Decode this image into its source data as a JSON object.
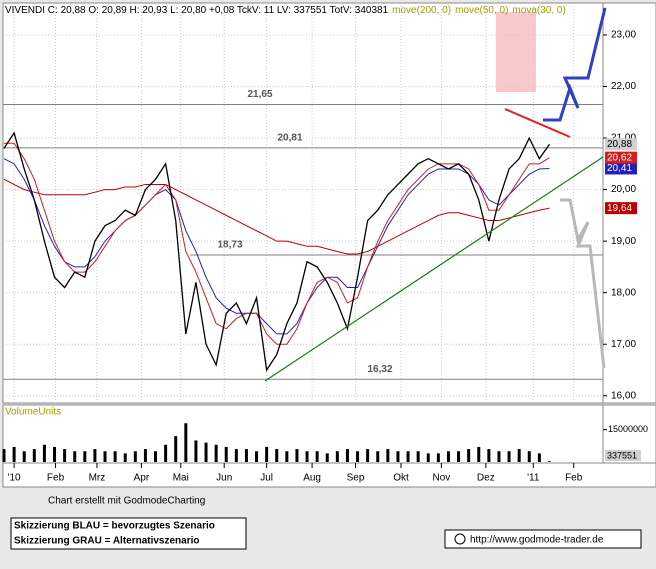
{
  "chart_data": {
    "type": "line",
    "title": "VIVENDI C: 20,88 O: 20,89 H: 20,93 L: 20,80 +0,08 TckV: 11 LV: 337551 TotV: 340381",
    "x": [
      -1,
      0,
      1,
      2,
      3,
      4,
      5,
      6,
      7,
      8,
      9,
      10,
      11,
      12,
      13,
      14,
      15,
      16,
      17,
      18,
      19,
      20,
      21,
      22,
      23,
      24,
      25,
      26,
      27,
      28,
      29,
      30,
      31,
      32,
      33,
      34,
      35,
      36,
      37,
      38,
      39,
      40,
      41,
      42,
      43,
      44,
      45,
      46,
      47,
      48,
      49,
      50,
      51,
      52,
      53
    ],
    "series": [
      {
        "name": "VIVENDI",
        "color": "#000000",
        "values": [
          20.8,
          21.1,
          20.4,
          19.8,
          19.0,
          18.3,
          18.1,
          18.4,
          18.3,
          19.0,
          19.3,
          19.4,
          19.6,
          19.5,
          20.0,
          20.2,
          20.5,
          19.4,
          17.2,
          18.2,
          17.0,
          16.6,
          17.6,
          17.8,
          17.4,
          17.9,
          16.5,
          16.8,
          17.4,
          17.8,
          18.6,
          18.5,
          18.2,
          17.8,
          17.3,
          18.3,
          19.4,
          19.6,
          19.9,
          20.1,
          20.3,
          20.5,
          20.6,
          20.5,
          20.4,
          20.5,
          20.3,
          19.8,
          19.0,
          19.8,
          20.4,
          20.6,
          21.0,
          20.6,
          20.88
        ],
        "value_labels": [
          null,
          null,
          null,
          null,
          null,
          null,
          null,
          null,
          null,
          null,
          null,
          null,
          null,
          null,
          null,
          null,
          null,
          null,
          null,
          null,
          null,
          null,
          null,
          null,
          null,
          null,
          null,
          null,
          null,
          null,
          null,
          null,
          null,
          null,
          null,
          null,
          null,
          null,
          null,
          null,
          null,
          null,
          null,
          null,
          null,
          null,
          null,
          null,
          null,
          null,
          null,
          null,
          null,
          null,
          "20,88"
        ]
      },
      {
        "name": "move(200, 0)",
        "color": "#c00000",
        "values": [
          20.2,
          20.1,
          20.0,
          19.95,
          19.9,
          19.9,
          19.9,
          19.9,
          19.9,
          19.95,
          20.0,
          20.0,
          20.05,
          20.05,
          20.1,
          20.1,
          20.1,
          20.0,
          19.9,
          19.8,
          19.7,
          19.6,
          19.5,
          19.4,
          19.3,
          19.2,
          19.1,
          19.0,
          19.0,
          18.95,
          18.9,
          18.9,
          18.85,
          18.8,
          18.75,
          18.75,
          18.8,
          18.9,
          19.0,
          19.1,
          19.2,
          19.3,
          19.4,
          19.5,
          19.55,
          19.55,
          19.5,
          19.45,
          19.4,
          19.4,
          19.45,
          19.5,
          19.55,
          19.6,
          19.64
        ],
        "value_labels": [
          null,
          null,
          null,
          null,
          null,
          null,
          null,
          null,
          null,
          null,
          null,
          null,
          null,
          null,
          null,
          null,
          null,
          null,
          null,
          null,
          null,
          null,
          null,
          null,
          null,
          null,
          null,
          null,
          null,
          null,
          null,
          null,
          null,
          null,
          null,
          null,
          null,
          null,
          null,
          null,
          null,
          null,
          null,
          null,
          null,
          null,
          null,
          null,
          null,
          null,
          null,
          null,
          null,
          null,
          "19,64"
        ]
      },
      {
        "name": "move(50, 0)",
        "color": "#2020c0",
        "values": [
          20.6,
          20.5,
          20.2,
          19.8,
          19.3,
          18.9,
          18.6,
          18.5,
          18.5,
          18.7,
          19.0,
          19.2,
          19.4,
          19.5,
          19.7,
          19.9,
          20.0,
          19.8,
          19.2,
          18.8,
          18.3,
          17.9,
          17.7,
          17.6,
          17.6,
          17.6,
          17.4,
          17.2,
          17.2,
          17.4,
          17.8,
          18.1,
          18.3,
          18.3,
          18.1,
          18.1,
          18.5,
          18.9,
          19.3,
          19.6,
          19.9,
          20.1,
          20.3,
          20.4,
          20.4,
          20.4,
          20.3,
          20.1,
          19.8,
          19.7,
          19.9,
          20.1,
          20.3,
          20.4,
          20.41
        ],
        "value_labels": [
          null,
          null,
          null,
          null,
          null,
          null,
          null,
          null,
          null,
          null,
          null,
          null,
          null,
          null,
          null,
          null,
          null,
          null,
          null,
          null,
          null,
          null,
          null,
          null,
          null,
          null,
          null,
          null,
          null,
          null,
          null,
          null,
          null,
          null,
          null,
          null,
          null,
          null,
          null,
          null,
          null,
          null,
          null,
          null,
          null,
          null,
          null,
          null,
          null,
          null,
          null,
          null,
          null,
          null,
          "20,41"
        ]
      },
      {
        "name": "mova(30, 0)",
        "color": "#d02020",
        "values": [
          20.9,
          20.9,
          20.6,
          20.2,
          19.6,
          19.0,
          18.6,
          18.4,
          18.4,
          18.6,
          18.9,
          19.2,
          19.4,
          19.5,
          19.7,
          19.9,
          20.1,
          19.8,
          18.8,
          18.4,
          17.9,
          17.4,
          17.3,
          17.5,
          17.6,
          17.6,
          17.2,
          17.0,
          17.0,
          17.3,
          17.8,
          18.2,
          18.3,
          18.2,
          17.8,
          17.9,
          18.5,
          19.0,
          19.4,
          19.7,
          20.0,
          20.2,
          20.4,
          20.5,
          20.5,
          20.5,
          20.4,
          20.1,
          19.6,
          19.6,
          19.9,
          20.2,
          20.5,
          20.5,
          20.62
        ],
        "value_labels": [
          null,
          null,
          null,
          null,
          null,
          null,
          null,
          null,
          null,
          null,
          null,
          null,
          null,
          null,
          null,
          null,
          null,
          null,
          null,
          null,
          null,
          null,
          null,
          null,
          null,
          null,
          null,
          null,
          null,
          null,
          null,
          null,
          null,
          null,
          null,
          null,
          null,
          null,
          null,
          null,
          null,
          null,
          null,
          null,
          null,
          null,
          null,
          null,
          null,
          null,
          null,
          null,
          null,
          null,
          "20,62"
        ]
      }
    ],
    "xlim": [
      -1.1,
      58.3
    ],
    "xticks": [
      {
        "value": 0,
        "label": "'10"
      },
      {
        "value": 4.1,
        "label": "Feb"
      },
      {
        "value": 8.2,
        "label": "Mrz"
      },
      {
        "value": 12.6,
        "label": "Apr"
      },
      {
        "value": 16.5,
        "label": "Mai"
      },
      {
        "value": 20.8,
        "label": "Jun"
      },
      {
        "value": 25,
        "label": "Jul"
      },
      {
        "value": 29.5,
        "label": "Aug"
      },
      {
        "value": 33.8,
        "label": "Sep"
      },
      {
        "value": 38.3,
        "label": "Okt"
      },
      {
        "value": 42.3,
        "label": "Nov"
      },
      {
        "value": 46.7,
        "label": "Dez"
      },
      {
        "value": 51.4,
        "label": "'11"
      },
      {
        "value": 55.4,
        "label": "Feb"
      }
    ],
    "ylim": [
      15.86,
      23.62
    ],
    "yticks": [
      {
        "value": 16,
        "label": "16,00"
      },
      {
        "value": 17,
        "label": "17,00"
      },
      {
        "value": 18,
        "label": "18,00"
      },
      {
        "value": 19,
        "label": "19,00"
      },
      {
        "value": 20,
        "label": "20,00"
      },
      {
        "value": 21,
        "label": "21,00"
      },
      {
        "value": 22,
        "label": "22,00"
      },
      {
        "value": 23,
        "label": "23,00"
      }
    ],
    "levels": [
      {
        "value": 21.65,
        "label": "21,65"
      },
      {
        "value": 20.81,
        "label": "20,81"
      },
      {
        "value": 18.73,
        "label": "18,73"
      },
      {
        "value": 16.32,
        "label": "16,32"
      }
    ],
    "grid": true,
    "volume": {
      "label": "VolumeUnits",
      "color": "#000000",
      "values": [
        6000000,
        7000000,
        5000000,
        6000000,
        8000000,
        7000000,
        6000000,
        5000000,
        5000000,
        6000000,
        5000000,
        5000000,
        4000000,
        5000000,
        6000000,
        5000000,
        8000000,
        12000000,
        18000000,
        10000000,
        9000000,
        8000000,
        7000000,
        6000000,
        6000000,
        5000000,
        7000000,
        6000000,
        5000000,
        6000000,
        5000000,
        5000000,
        4000000,
        5000000,
        6000000,
        5000000,
        6000000,
        5000000,
        6000000,
        5000000,
        5000000,
        5000000,
        4000000,
        4000000,
        5000000,
        5000000,
        6000000,
        7000000,
        6000000,
        5000000,
        5000000,
        6000000,
        5000000,
        4000000,
        337551
      ],
      "ylim": [
        0,
        26000000
      ],
      "yticks": [
        15000000
      ]
    },
    "footer": {
      "credit": "Chart erstellt mit GodmodeCharting",
      "legend_blue": "Skizzierung BLAU = bevorzugtes Szenario",
      "legend_grey": "Skizzierung GRAU = Alternativszenario",
      "url": "http://www.godmode-trader.de"
    }
  }
}
